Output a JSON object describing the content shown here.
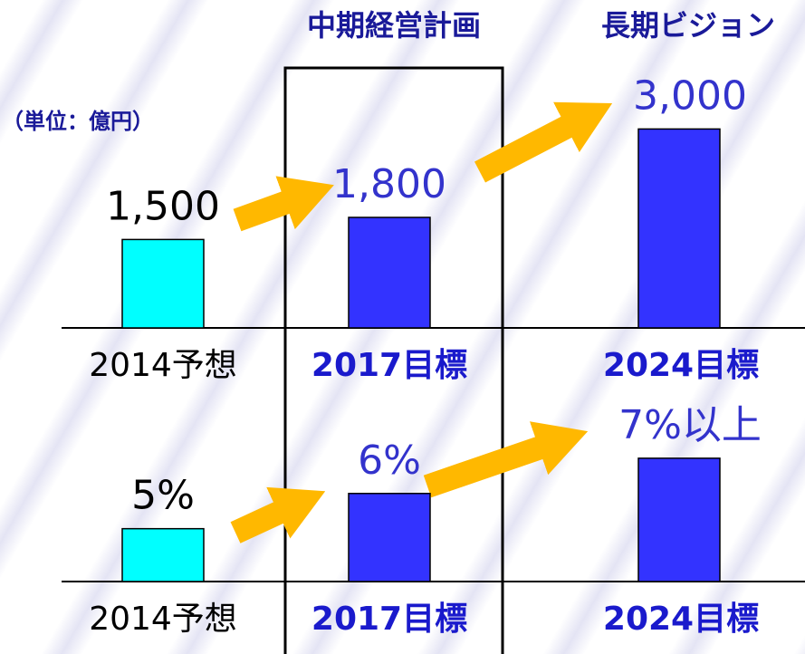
{
  "headers": [
    "中期経営計画",
    "長期ビジョン"
  ],
  "unit_label": "（単位：億円）",
  "chart_data": [
    {
      "type": "bar",
      "categories": [
        "2014予想",
        "2017目標",
        "2024目標"
      ],
      "values": [
        1500,
        1800,
        3000
      ],
      "value_labels": [
        "1,500",
        "1,800",
        "3,000"
      ],
      "colors": [
        "#00ffff",
        "#3333ff",
        "#3333ff"
      ],
      "label_colors": [
        "#000000",
        "#3333cc",
        "#3333cc"
      ],
      "ylim": [
        300,
        3300
      ]
    },
    {
      "type": "bar",
      "categories": [
        "2014予想",
        "2017目標",
        "2024目標"
      ],
      "values": [
        5,
        6,
        7
      ],
      "value_labels": [
        "5%",
        "6%",
        "7%以上"
      ],
      "colors": [
        "#00ffff",
        "#3333ff",
        "#3333ff"
      ],
      "label_colors": [
        "#000000",
        "#3333cc",
        "#3333cc"
      ],
      "ylim": [
        3.5,
        8
      ]
    }
  ]
}
